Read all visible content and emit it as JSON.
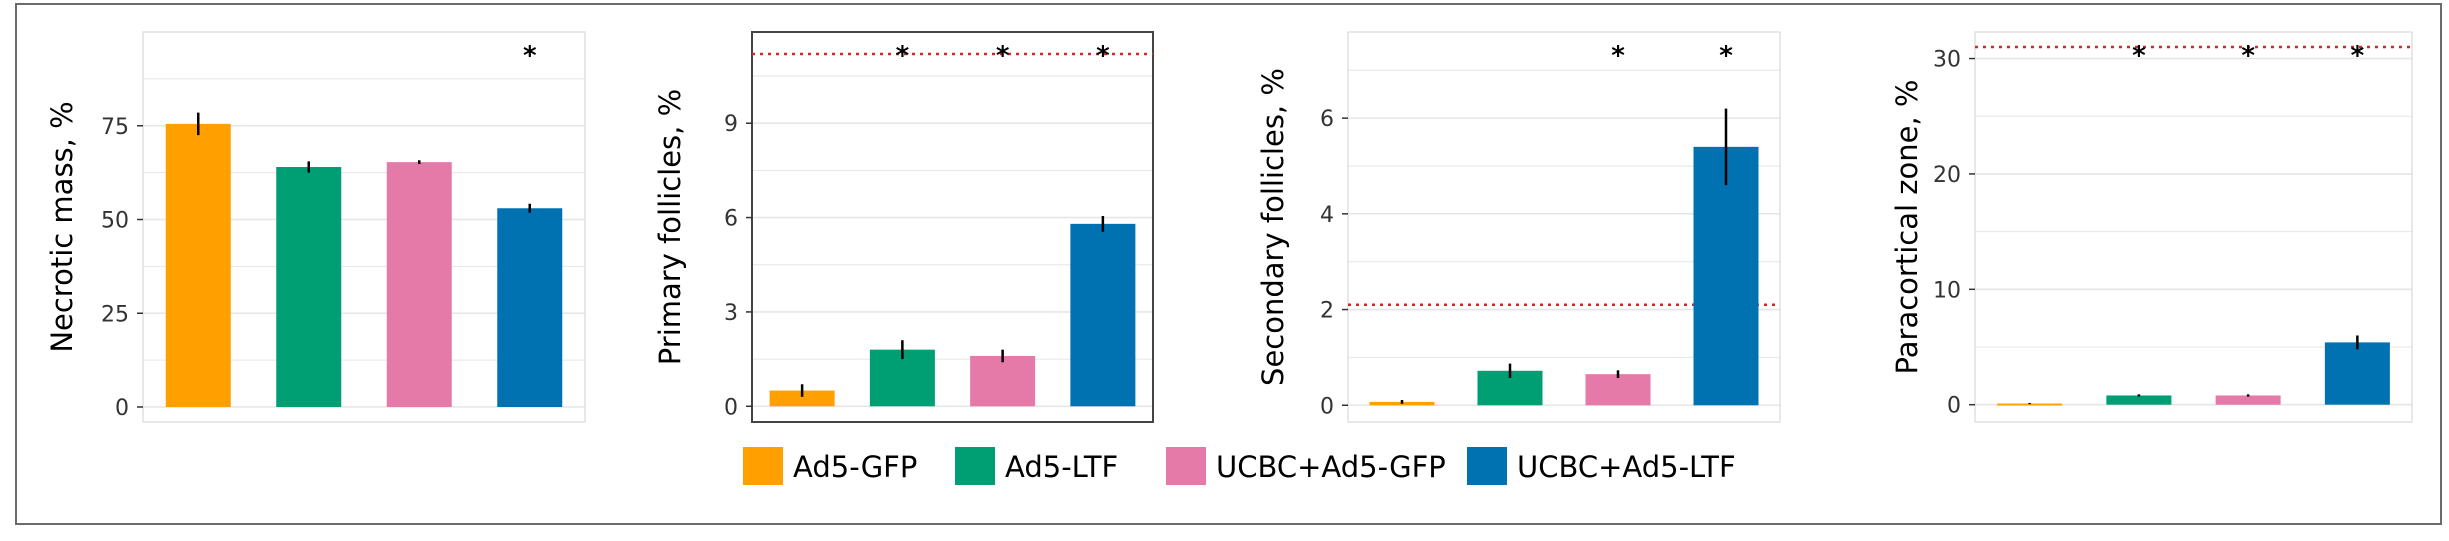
{
  "colors": {
    "Ad5-GFP": "#ff9f00",
    "Ad5-LTF": "#009e73",
    "UCBC+Ad5-GFP": "#e57aa8",
    "UCBC+Ad5-LTF": "#0072b2",
    "reference_line": "#cc2a2a",
    "error_bar": "#000000",
    "grid": "#e6e6e6",
    "frame": "#444444"
  },
  "legend": {
    "position": "bottom-center",
    "items": [
      "Ad5-GFP",
      "Ad5-LTF",
      "UCBC+Ad5-GFP",
      "UCBC+Ad5-LTF"
    ]
  },
  "chart_data": [
    {
      "type": "bar",
      "title": "",
      "xlabel": "",
      "ylabel": "Necrotic mass, %",
      "categories": [
        "Ad5-GFP",
        "Ad5-LTF",
        "UCBC+Ad5-GFP",
        "UCBC+Ad5-LTF"
      ],
      "values": [
        75.5,
        64.0,
        65.3,
        53.0
      ],
      "errors": [
        3.0,
        1.5,
        0.5,
        1.2
      ],
      "significant": [
        false,
        false,
        false,
        true
      ],
      "reference_line": null,
      "ylim": [
        -4,
        100
      ],
      "yticks": [
        0,
        25,
        50,
        75
      ],
      "ytick_labels": [
        "0",
        "25",
        "50",
        "75"
      ],
      "grid": true
    },
    {
      "type": "bar",
      "title": "",
      "xlabel": "",
      "ylabel": "Primary follicles, %",
      "categories": [
        "Ad5-GFP",
        "Ad5-LTF",
        "UCBC+Ad5-GFP",
        "UCBC+Ad5-LTF"
      ],
      "values": [
        0.5,
        1.8,
        1.6,
        5.8
      ],
      "errors": [
        0.2,
        0.3,
        0.2,
        0.25
      ],
      "significant": [
        false,
        true,
        true,
        true
      ],
      "reference_line": 11.2,
      "ylim": [
        -0.5,
        11.9
      ],
      "yticks": [
        0,
        3,
        6,
        9
      ],
      "ytick_labels": [
        "0",
        "3",
        "6",
        "9"
      ],
      "grid": true
    },
    {
      "type": "bar",
      "title": "",
      "xlabel": "",
      "ylabel": "Secondary follicles, %",
      "categories": [
        "Ad5-GFP",
        "Ad5-LTF",
        "UCBC+Ad5-GFP",
        "UCBC+Ad5-LTF"
      ],
      "values": [
        0.07,
        0.72,
        0.65,
        5.4
      ],
      "errors": [
        0.04,
        0.15,
        0.08,
        0.8
      ],
      "significant": [
        false,
        false,
        true,
        true
      ],
      "reference_line": 2.1,
      "ylim": [
        -0.35,
        7.8
      ],
      "yticks": [
        0,
        2,
        4,
        6
      ],
      "ytick_labels": [
        "0",
        "2",
        "4",
        "6"
      ],
      "grid": true
    },
    {
      "type": "bar",
      "title": "",
      "xlabel": "",
      "ylabel": "Paracortical zone, %",
      "categories": [
        "Ad5-GFP",
        "Ad5-LTF",
        "UCBC+Ad5-GFP",
        "UCBC+Ad5-LTF"
      ],
      "values": [
        0.1,
        0.8,
        0.8,
        5.4
      ],
      "errors": [
        0.05,
        0.1,
        0.1,
        0.6
      ],
      "significant": [
        false,
        true,
        true,
        true
      ],
      "reference_line": 31.0,
      "ylim": [
        -1.5,
        32.3
      ],
      "yticks": [
        0,
        10,
        20,
        30
      ],
      "ytick_labels": [
        "0",
        "10",
        "20",
        "30"
      ],
      "grid": true
    }
  ]
}
